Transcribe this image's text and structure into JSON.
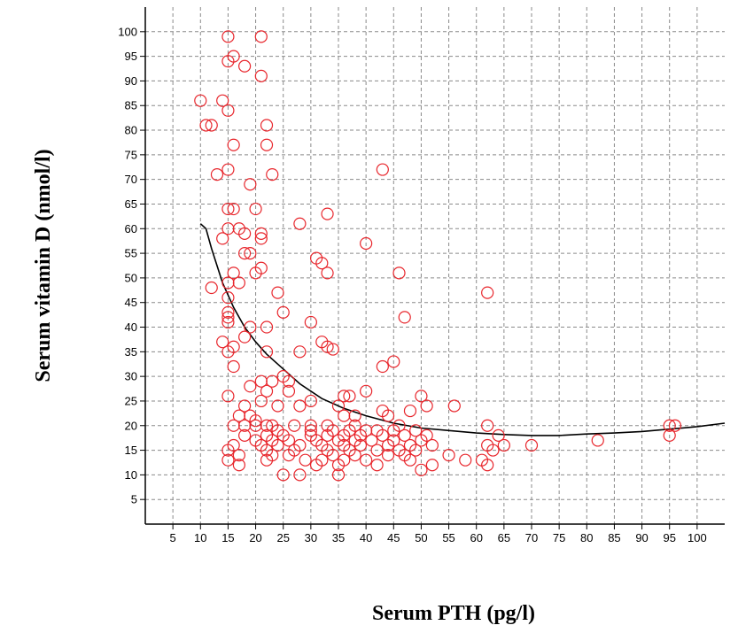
{
  "chart_data": {
    "type": "scatter",
    "xlabel": "Serum PTH (pg/l)",
    "ylabel": "Serum vitamin D (nmol/l)",
    "xlim": [
      0,
      105
    ],
    "ylim": [
      0,
      105
    ],
    "xticks": [
      5,
      10,
      15,
      20,
      25,
      30,
      35,
      40,
      45,
      50,
      55,
      60,
      65,
      70,
      75,
      80,
      85,
      90,
      95,
      100
    ],
    "yticks": [
      5,
      10,
      15,
      20,
      25,
      30,
      35,
      40,
      45,
      50,
      55,
      60,
      65,
      70,
      75,
      80,
      85,
      90,
      95,
      100
    ],
    "grid": true,
    "legend": "none",
    "colors": {
      "points": "#e8262c",
      "fit": "#000000",
      "grid": "#8a8a8a",
      "axis": "#000000"
    },
    "fit_line": [
      [
        10,
        61
      ],
      [
        11,
        60
      ],
      [
        12,
        56
      ],
      [
        14,
        49
      ],
      [
        16,
        44
      ],
      [
        18,
        40
      ],
      [
        20,
        37
      ],
      [
        22,
        34.5
      ],
      [
        25,
        31.5
      ],
      [
        28,
        28.5
      ],
      [
        32,
        25.5
      ],
      [
        36,
        23.5
      ],
      [
        40,
        22
      ],
      [
        45,
        20.5
      ],
      [
        50,
        19.5
      ],
      [
        55,
        19
      ],
      [
        60,
        18.5
      ],
      [
        65,
        18.2
      ],
      [
        70,
        18
      ],
      [
        75,
        18
      ],
      [
        80,
        18.3
      ],
      [
        85,
        18.5
      ],
      [
        90,
        18.8
      ],
      [
        95,
        19.3
      ],
      [
        100,
        19.8
      ],
      [
        105,
        20.5
      ]
    ],
    "points": [
      [
        15,
        99
      ],
      [
        21,
        99
      ],
      [
        16,
        95
      ],
      [
        15,
        94
      ],
      [
        18,
        93
      ],
      [
        21,
        91
      ],
      [
        10,
        86
      ],
      [
        14,
        86
      ],
      [
        15,
        84
      ],
      [
        11,
        81
      ],
      [
        12,
        81
      ],
      [
        22,
        81
      ],
      [
        16,
        77
      ],
      [
        22,
        77
      ],
      [
        15,
        72
      ],
      [
        43,
        72
      ],
      [
        13,
        71
      ],
      [
        23,
        71
      ],
      [
        19,
        69
      ],
      [
        15,
        64
      ],
      [
        16,
        64
      ],
      [
        20,
        64
      ],
      [
        33,
        63
      ],
      [
        28,
        61
      ],
      [
        15,
        60
      ],
      [
        17,
        60
      ],
      [
        18,
        59
      ],
      [
        21,
        59
      ],
      [
        21,
        58
      ],
      [
        14,
        58
      ],
      [
        40,
        57
      ],
      [
        18,
        55
      ],
      [
        19,
        55
      ],
      [
        31,
        54
      ],
      [
        32,
        53
      ],
      [
        21,
        52
      ],
      [
        16,
        51
      ],
      [
        20,
        51
      ],
      [
        33,
        51
      ],
      [
        46,
        51
      ],
      [
        15,
        49
      ],
      [
        17,
        49
      ],
      [
        12,
        48
      ],
      [
        62,
        47
      ],
      [
        24,
        47
      ],
      [
        15,
        46
      ],
      [
        15,
        43
      ],
      [
        25,
        43
      ],
      [
        15,
        42
      ],
      [
        15,
        41
      ],
      [
        47,
        42
      ],
      [
        30,
        41
      ],
      [
        19,
        40
      ],
      [
        22,
        40
      ],
      [
        18,
        38
      ],
      [
        14,
        37
      ],
      [
        32,
        37
      ],
      [
        33,
        36
      ],
      [
        16,
        36
      ],
      [
        15,
        35
      ],
      [
        22,
        35
      ],
      [
        28,
        35
      ],
      [
        34,
        35.5
      ],
      [
        45,
        33
      ],
      [
        16,
        32
      ],
      [
        43,
        32
      ],
      [
        21,
        29
      ],
      [
        23,
        29
      ],
      [
        25,
        30
      ],
      [
        26,
        29
      ],
      [
        19,
        28
      ],
      [
        22,
        27
      ],
      [
        26,
        27
      ],
      [
        40,
        27
      ],
      [
        15,
        26
      ],
      [
        36,
        26
      ],
      [
        37,
        26
      ],
      [
        50,
        26
      ],
      [
        21,
        25
      ],
      [
        24,
        24
      ],
      [
        28,
        24
      ],
      [
        30,
        25
      ],
      [
        35,
        24
      ],
      [
        51,
        24
      ],
      [
        56,
        24
      ],
      [
        18,
        24
      ],
      [
        17,
        22
      ],
      [
        19,
        22
      ],
      [
        20,
        21
      ],
      [
        38,
        22
      ],
      [
        43,
        23
      ],
      [
        48,
        23
      ],
      [
        44,
        22
      ],
      [
        36,
        22
      ],
      [
        16,
        20
      ],
      [
        18,
        20
      ],
      [
        20,
        20
      ],
      [
        22,
        20
      ],
      [
        23,
        20
      ],
      [
        27,
        20
      ],
      [
        30,
        20
      ],
      [
        33,
        20
      ],
      [
        38,
        20
      ],
      [
        46,
        20
      ],
      [
        62,
        20
      ],
      [
        95,
        20
      ],
      [
        96,
        20
      ],
      [
        24,
        19
      ],
      [
        30,
        19
      ],
      [
        34,
        19
      ],
      [
        37,
        19
      ],
      [
        40,
        19
      ],
      [
        42,
        19
      ],
      [
        45,
        19
      ],
      [
        49,
        19
      ],
      [
        18,
        18
      ],
      [
        22,
        18
      ],
      [
        25,
        18
      ],
      [
        30,
        18
      ],
      [
        33,
        18
      ],
      [
        36,
        18
      ],
      [
        39,
        18
      ],
      [
        43,
        18
      ],
      [
        47,
        18
      ],
      [
        51,
        18
      ],
      [
        64,
        18
      ],
      [
        95,
        18
      ],
      [
        20,
        17
      ],
      [
        23,
        17
      ],
      [
        26,
        17
      ],
      [
        31,
        17
      ],
      [
        35,
        17
      ],
      [
        38,
        17
      ],
      [
        41,
        17
      ],
      [
        45,
        17
      ],
      [
        50,
        17
      ],
      [
        82,
        17
      ],
      [
        16,
        16
      ],
      [
        21,
        16
      ],
      [
        24,
        16
      ],
      [
        28,
        16
      ],
      [
        32,
        16
      ],
      [
        36,
        16
      ],
      [
        39,
        16
      ],
      [
        44,
        16
      ],
      [
        48,
        16
      ],
      [
        52,
        16
      ],
      [
        62,
        16
      ],
      [
        65,
        16
      ],
      [
        70,
        16
      ],
      [
        15,
        15
      ],
      [
        22,
        15
      ],
      [
        27,
        15
      ],
      [
        33,
        15
      ],
      [
        37,
        15
      ],
      [
        42,
        15
      ],
      [
        46,
        15
      ],
      [
        49,
        15
      ],
      [
        63,
        15
      ],
      [
        17,
        14
      ],
      [
        23,
        14
      ],
      [
        26,
        14
      ],
      [
        34,
        14
      ],
      [
        38,
        14
      ],
      [
        44,
        14
      ],
      [
        47,
        14
      ],
      [
        55,
        14
      ],
      [
        15,
        13
      ],
      [
        22,
        13
      ],
      [
        29,
        13
      ],
      [
        32,
        13
      ],
      [
        36,
        13
      ],
      [
        40,
        13
      ],
      [
        48,
        13
      ],
      [
        58,
        13
      ],
      [
        61,
        13
      ],
      [
        17,
        12
      ],
      [
        31,
        12
      ],
      [
        35,
        12
      ],
      [
        42,
        12
      ],
      [
        52,
        12
      ],
      [
        62,
        12
      ],
      [
        50,
        11
      ],
      [
        25,
        10
      ],
      [
        28,
        10
      ],
      [
        35,
        10
      ]
    ]
  }
}
